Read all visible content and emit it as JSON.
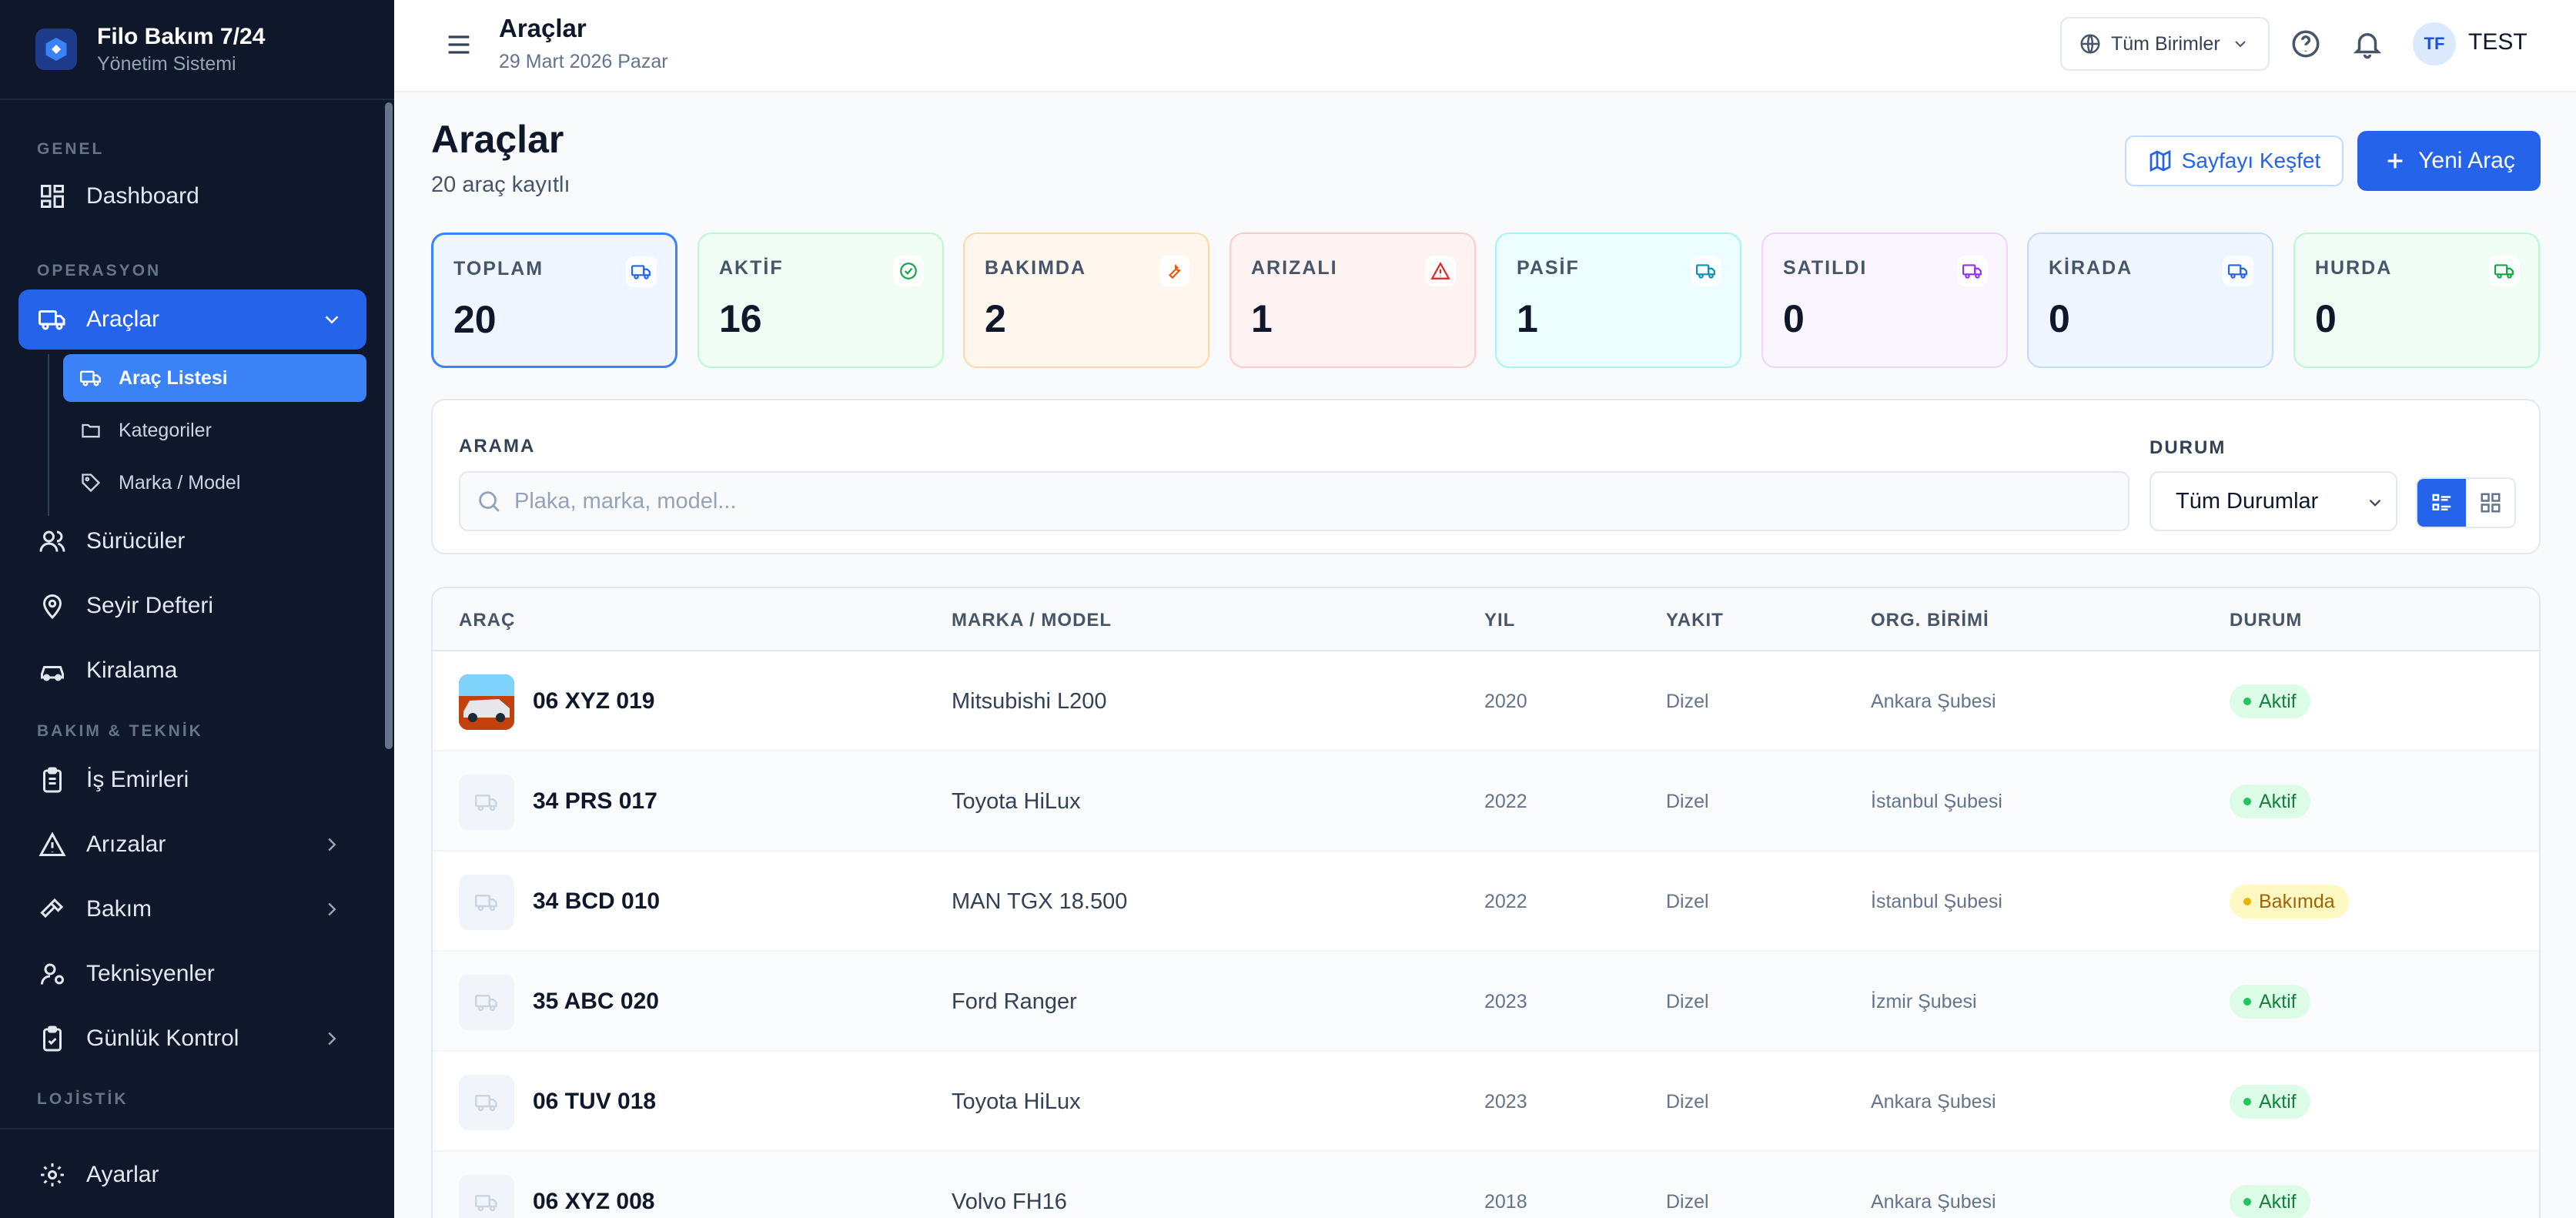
{
  "brand": {
    "title": "Filo Bakım 7/24",
    "subtitle": "Yönetim Sistemi"
  },
  "sidebar": {
    "sections": {
      "general": "GENEL",
      "operations": "OPERASYON",
      "maintenance": "BAKIM & TEKNİK",
      "logistics": "LOJİSTİK"
    },
    "items": {
      "dashboard": "Dashboard",
      "vehicles": "Araçlar",
      "vehicle_list": "Araç Listesi",
      "categories": "Kategoriler",
      "brand_model": "Marka / Model",
      "drivers": "Sürücüler",
      "logbook": "Seyir Defteri",
      "rental": "Kiralama",
      "work_orders": "İş Emirleri",
      "faults": "Arızalar",
      "maintenance": "Bakım",
      "technicians": "Teknisyenler",
      "daily_check": "Günlük Kontrol",
      "settings": "Ayarlar"
    }
  },
  "header": {
    "title": "Araçlar",
    "date": "29 Mart 2026 Pazar",
    "unit_select": "Tüm Birimler",
    "avatar_initials": "TF",
    "user_name": "TEST"
  },
  "page": {
    "title": "Araçlar",
    "subtitle": "20 araç kayıtlı",
    "explore_button": "Sayfayı Keşfet",
    "new_button": "Yeni Araç"
  },
  "stats": [
    {
      "label": "TOPLAM",
      "value": "20"
    },
    {
      "label": "AKTİF",
      "value": "16"
    },
    {
      "label": "BAKIMDA",
      "value": "2"
    },
    {
      "label": "ARIZALI",
      "value": "1"
    },
    {
      "label": "PASİF",
      "value": "1"
    },
    {
      "label": "SATILDI",
      "value": "0"
    },
    {
      "label": "KİRADA",
      "value": "0"
    },
    {
      "label": "HURDA",
      "value": "0"
    }
  ],
  "filters": {
    "search_label": "ARAMA",
    "search_placeholder": "Plaka, marka, model...",
    "search_value": "",
    "status_label": "DURUM",
    "status_value": "Tüm Durumlar"
  },
  "table": {
    "headers": {
      "vehicle": "ARAÇ",
      "brand_model": "MARKA / MODEL",
      "year": "YIL",
      "fuel": "YAKIT",
      "org_unit": "ORG. BİRİMİ",
      "status": "DURUM"
    },
    "rows": [
      {
        "plate": "06 XYZ 019",
        "model": "Mitsubishi L200",
        "year": "2020",
        "fuel": "Dizel",
        "unit": "Ankara Şubesi",
        "status": "Aktif"
      },
      {
        "plate": "34 PRS 017",
        "model": "Toyota HiLux",
        "year": "2022",
        "fuel": "Dizel",
        "unit": "İstanbul Şubesi",
        "status": "Aktif"
      },
      {
        "plate": "34 BCD 010",
        "model": "MAN TGX 18.500",
        "year": "2022",
        "fuel": "Dizel",
        "unit": "İstanbul Şubesi",
        "status": "Bakımda"
      },
      {
        "plate": "35 ABC 020",
        "model": "Ford Ranger",
        "year": "2023",
        "fuel": "Dizel",
        "unit": "İzmir Şubesi",
        "status": "Aktif"
      },
      {
        "plate": "06 TUV 018",
        "model": "Toyota HiLux",
        "year": "2023",
        "fuel": "Dizel",
        "unit": "Ankara Şubesi",
        "status": "Aktif"
      },
      {
        "plate": "06 XYZ 008",
        "model": "Volvo FH16",
        "year": "2018",
        "fuel": "Dizel",
        "unit": "Ankara Şubesi",
        "status": "Aktif"
      }
    ]
  },
  "colors": {
    "accent": "#2563eb",
    "sidebar_bg": "#0f172a"
  }
}
